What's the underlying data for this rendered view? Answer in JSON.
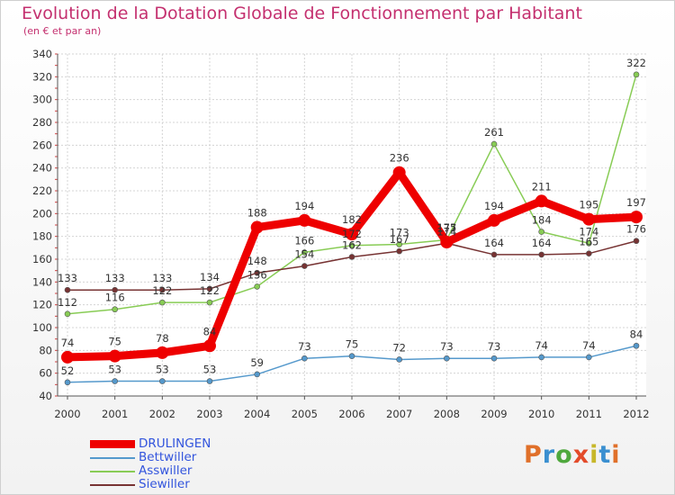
{
  "title": "Evolution de la Dotation Globale de Fonctionnement par Habitant",
  "subtitle": "(en € et par an)",
  "brand": {
    "letters": [
      "P",
      "r",
      "o",
      "x",
      "i",
      "t",
      "i"
    ],
    "colors": [
      "#e0702a",
      "#3a8fd0",
      "#4fa83d",
      "#e34b2a",
      "#c7b72a",
      "#3a8fd0",
      "#e0702a"
    ]
  },
  "chart_data": {
    "type": "line",
    "title": "Evolution de la Dotation Globale de Fonctionnement par Habitant",
    "subtitle": "(en € et par an)",
    "x": [
      "2000",
      "2001",
      "2002",
      "2003",
      "2004",
      "2005",
      "2006",
      "2007",
      "2008",
      "2009",
      "2010",
      "2011",
      "2012"
    ],
    "ylim": [
      40,
      340
    ],
    "yticks": [
      40,
      60,
      80,
      100,
      120,
      140,
      160,
      180,
      200,
      220,
      240,
      260,
      280,
      300,
      320,
      340
    ],
    "grid": true,
    "legend_position": "bottom-left",
    "series": [
      {
        "name": "DRULINGEN",
        "color": "#ee0000",
        "thick": true,
        "values": [
          74,
          75,
          78,
          84,
          188,
          194,
          182,
          236,
          175,
          194,
          211,
          195,
          197
        ],
        "labels": [
          "74",
          "75",
          "78",
          "84",
          "188",
          "194",
          "182",
          "236",
          "175",
          "194",
          "211",
          "195",
          "197"
        ]
      },
      {
        "name": "Bettwiller",
        "color": "#5599cc",
        "thick": false,
        "values": [
          52,
          53,
          53,
          53,
          59,
          73,
          75,
          72,
          73,
          73,
          74,
          74,
          84
        ],
        "labels": [
          "52",
          "53",
          "53",
          "53",
          "59",
          "73",
          "75",
          "72",
          "73",
          "73",
          "74",
          "74",
          "84"
        ]
      },
      {
        "name": "Asswiller",
        "color": "#88cc55",
        "thick": false,
        "values": [
          112,
          116,
          122,
          122,
          136,
          166,
          172,
          173,
          177,
          261,
          184,
          174,
          322
        ],
        "labels": [
          "112",
          "116",
          "122",
          "122",
          "136",
          "166",
          "172",
          "173",
          "177",
          "261",
          "184",
          "174",
          "322"
        ]
      },
      {
        "name": "Siewiller",
        "color": "#773333",
        "thick": false,
        "values": [
          133,
          133,
          133,
          134,
          148,
          154,
          162,
          167,
          174,
          164,
          164,
          165,
          176
        ],
        "labels": [
          "133",
          "133",
          "133",
          "134",
          "148",
          "154",
          "162",
          "167",
          "174",
          "164",
          "164",
          "165",
          "176"
        ]
      }
    ]
  }
}
